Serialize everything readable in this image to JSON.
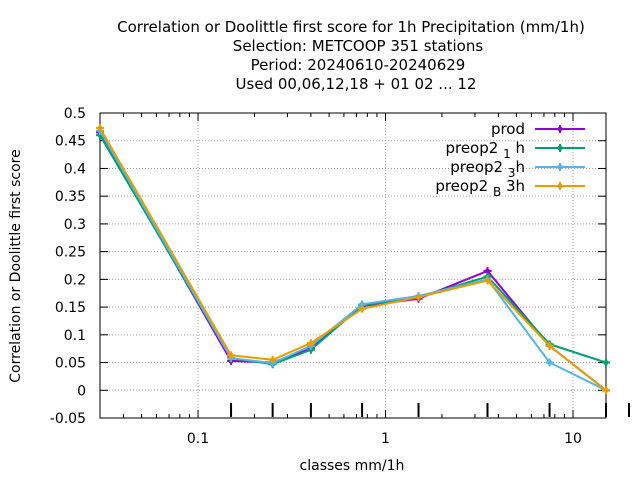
{
  "chart_data": {
    "type": "line",
    "title_lines": [
      "Correlation or Doolittle first score  for 1h Precipitation (mm/1h)",
      "Selection: METCOOP    351 stations",
      "Period: 20240610-20240629",
      "Used  00,06,12,18 + 01 02 ... 12"
    ],
    "xlabel": "classes mm/1h",
    "ylabel": "Correlation or Doolittle first score",
    "x_scale": "log",
    "xlim": [
      0.03,
      15
    ],
    "ylim": [
      -0.05,
      0.5
    ],
    "x_ticks": [
      {
        "value": 0.1,
        "label": "0.1"
      },
      {
        "value": 1,
        "label": "1"
      },
      {
        "value": 10,
        "label": "10"
      }
    ],
    "y_ticks": [
      {
        "value": -0.05,
        "label": "-0.05"
      },
      {
        "value": 0,
        "label": "0"
      },
      {
        "value": 0.05,
        "label": "0.05"
      },
      {
        "value": 0.1,
        "label": "0.1"
      },
      {
        "value": 0.15,
        "label": "0.15"
      },
      {
        "value": 0.2,
        "label": "0.2"
      },
      {
        "value": 0.25,
        "label": "0.25"
      },
      {
        "value": 0.3,
        "label": "0.3"
      },
      {
        "value": 0.35,
        "label": "0.35"
      },
      {
        "value": 0.4,
        "label": "0.4"
      },
      {
        "value": 0.45,
        "label": "0.45"
      },
      {
        "value": 0.5,
        "label": "0.5"
      }
    ],
    "grid": true,
    "legend_position": "top-right",
    "x": [
      0.03,
      0.15,
      0.25,
      0.4,
      0.75,
      1.5,
      3.5,
      7.5,
      15
    ],
    "series": [
      {
        "name": "prod",
        "name_parts": [
          "prod",
          "",
          ""
        ],
        "color": "#9400d3",
        "values": [
          0.465,
          0.053,
          0.05,
          0.075,
          0.152,
          0.165,
          0.215,
          0.08,
          0.0
        ]
      },
      {
        "name": "preop2 1 h",
        "name_parts": [
          "preop2 ",
          "1",
          " h"
        ],
        "color": "#009e73",
        "values": [
          0.46,
          0.058,
          0.047,
          0.073,
          0.153,
          0.168,
          0.205,
          0.083,
          0.05
        ]
      },
      {
        "name": "preop2 3 h",
        "name_parts": [
          "preop2 ",
          "3",
          "h"
        ],
        "color": "#56b4e9",
        "values": [
          0.468,
          0.058,
          0.049,
          0.08,
          0.155,
          0.17,
          0.2,
          0.05,
          0.0
        ]
      },
      {
        "name": "preop2 B 3h",
        "name_parts": [
          "preop2 ",
          "B",
          " 3h"
        ],
        "color": "#e69f00",
        "values": [
          0.473,
          0.063,
          0.055,
          0.085,
          0.147,
          0.168,
          0.198,
          0.08,
          0.0
        ]
      }
    ]
  }
}
